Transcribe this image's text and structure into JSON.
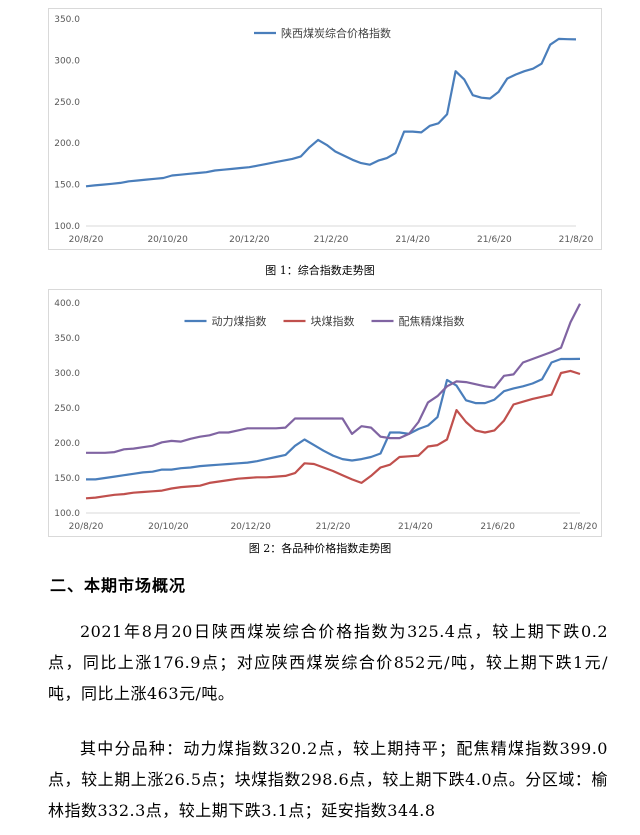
{
  "chart_data": [
    {
      "type": "line",
      "caption": "图 1：综合指数走势图",
      "x_tick_labels": [
        "20/8/20",
        "20/10/20",
        "20/12/20",
        "21/2/20",
        "21/4/20",
        "21/6/20",
        "21/8/20"
      ],
      "y_tick_labels": [
        "100.0",
        "150.0",
        "200.0",
        "250.0",
        "300.0",
        "350.0"
      ],
      "ylim": [
        100,
        350
      ],
      "grid": false,
      "legend_position": "top-center",
      "series": [
        {
          "name": "陕西煤炭综合价格指数",
          "color": "#4a7ebb",
          "values": [
            148,
            149,
            150,
            151,
            152,
            154,
            155,
            156,
            157,
            158,
            161,
            162,
            163,
            164,
            165,
            167,
            168,
            169,
            170,
            171,
            173,
            175,
            177,
            179,
            181,
            184,
            195,
            204,
            198,
            190,
            185,
            180,
            176,
            174,
            179,
            182,
            188,
            214,
            214,
            213,
            221,
            224,
            235,
            287,
            277,
            258,
            255,
            254,
            262,
            278,
            283,
            287,
            290,
            296,
            319,
            326,
            325.6,
            325.4
          ]
        }
      ]
    },
    {
      "type": "line",
      "caption": "图 2：各品种价格指数走势图",
      "x_tick_labels": [
        "20/8/20",
        "20/10/20",
        "20/12/20",
        "21/2/20",
        "21/4/20",
        "21/6/20",
        "21/8/20"
      ],
      "y_tick_labels": [
        "100.0",
        "150.0",
        "200.0",
        "250.0",
        "300.0",
        "350.0",
        "400.0"
      ],
      "ylim": [
        100,
        400
      ],
      "grid": false,
      "legend_position": "top-center",
      "series": [
        {
          "name": "动力煤指数",
          "color": "#4a7ebb",
          "values": [
            148,
            148,
            150,
            152,
            154,
            156,
            158,
            159,
            162,
            162,
            164,
            165,
            167,
            168,
            169,
            170,
            171,
            172,
            174,
            177,
            180,
            183,
            196,
            205,
            197,
            189,
            182,
            177,
            175,
            177,
            180,
            185,
            215,
            215,
            213,
            220,
            225,
            237,
            290,
            282,
            261,
            257,
            257,
            262,
            274,
            278,
            281,
            285,
            291,
            315,
            320,
            320,
            320.2
          ]
        },
        {
          "name": "块煤指数",
          "color": "#c0504d",
          "values": [
            121,
            122,
            124,
            126,
            127,
            129,
            130,
            131,
            132,
            135,
            137,
            138,
            139,
            143,
            145,
            147,
            149,
            150,
            151,
            151,
            152,
            153,
            157,
            171,
            170,
            165,
            160,
            154,
            148,
            143,
            153,
            165,
            169,
            180,
            181,
            182,
            195,
            197,
            205,
            247,
            230,
            218,
            215,
            218,
            232,
            255,
            259,
            263,
            266,
            269,
            300,
            303,
            298.6
          ]
        },
        {
          "name": "配焦精煤指数",
          "color": "#8064a2",
          "values": [
            186,
            186,
            186,
            187,
            191,
            192,
            194,
            196,
            201,
            203,
            202,
            206,
            209,
            211,
            215,
            215,
            218,
            221,
            221,
            221,
            221,
            222,
            235,
            235,
            235,
            235,
            235,
            235,
            213,
            224,
            222,
            209,
            207,
            207,
            213,
            230,
            258,
            267,
            281,
            288,
            287,
            284,
            281,
            279,
            296,
            298,
            315,
            320,
            325,
            330,
            336,
            372.5,
            399.0
          ]
        }
      ]
    }
  ],
  "section": {
    "title": "二、本期市场概况"
  },
  "paragraphs": [
    "2021年8月20日陕西煤炭综合价格指数为325.4点，较上期下跌0.2点，同比上涨176.9点；对应陕西煤炭综合价852元/吨，较上期下跌1元/吨，同比上涨463元/吨。",
    "其中分品种：动力煤指数320.2点，较上期持平；配焦精煤指数399.0点，较上期上涨26.5点；块煤指数298.6点，较上期下跌4.0点。分区域：榆林指数332.3点，较上期下跌3.1点；延安指数344.8"
  ]
}
